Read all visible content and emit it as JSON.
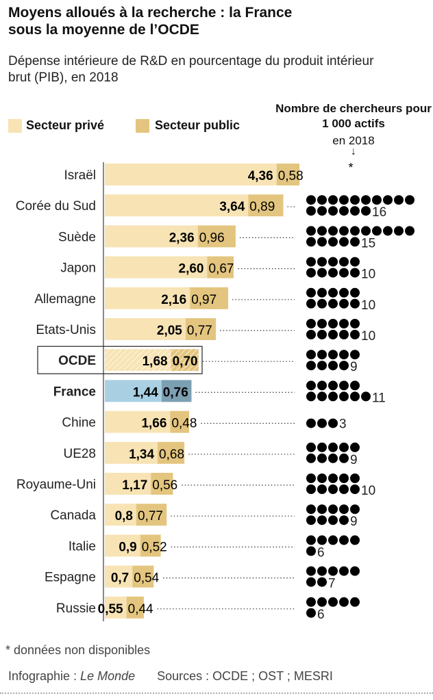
{
  "chart_data": {
    "type": "bar",
    "stacked": true,
    "title": "Moyens alloués à la recherche : la France sous la moyenne de l’OCDE",
    "subtitle": "Dépense intérieure de R&D en pourcentage du produit intérieur brut (PIB), en 2018",
    "legend": [
      {
        "name": "Secteur privé",
        "color": "#f7e3b4"
      },
      {
        "name": "Secteur public",
        "color": "#e3c57f"
      }
    ],
    "right_header": "Nombre de chercheurs pour 1 000 actifs",
    "right_sub": "en 2018",
    "right_arrow": "↓",
    "categories": [
      "Israël",
      "Corée du Sud",
      "Suède",
      "Japon",
      "Allemagne",
      "Etats-Unis",
      "OCDE",
      "France",
      "Chine",
      "UE28",
      "Royaume-Uni",
      "Canada",
      "Italie",
      "Espagne",
      "Russie"
    ],
    "series": [
      {
        "name": "Secteur privé",
        "values": [
          4.36,
          3.64,
          2.36,
          2.6,
          2.16,
          2.05,
          1.68,
          1.44,
          1.66,
          1.34,
          1.17,
          0.8,
          0.9,
          0.7,
          0.55
        ],
        "labels": [
          "4,36",
          "3,64",
          "2,36",
          "2,60",
          "2,16",
          "2,05",
          "1,68",
          "1,44",
          "1,66",
          "1,34",
          "1,17",
          "0,8",
          "0,9",
          "0,7",
          "0,55"
        ]
      },
      {
        "name": "Secteur public",
        "values": [
          0.58,
          0.89,
          0.96,
          0.67,
          0.97,
          0.77,
          0.7,
          0.76,
          0.48,
          0.68,
          0.56,
          0.77,
          0.52,
          0.54,
          0.44
        ],
        "labels": [
          "0,58",
          "0,89",
          "0,96",
          "0,67",
          "0,97",
          "0,77",
          "0,70",
          "0,76",
          "0,48",
          "0,68",
          "0,56",
          "0,77",
          "0,52",
          "0,54",
          "0,44"
        ]
      }
    ],
    "researchers": [
      null,
      16,
      15,
      10,
      10,
      10,
      9,
      11,
      3,
      9,
      10,
      9,
      6,
      7,
      6
    ],
    "researchers_missing": "*",
    "highlight": {
      "France": {
        "private": "#a9cfe3",
        "public": "#7c9fb2"
      },
      "OCDE": "hatched"
    }
  },
  "footer": {
    "note": "* données non disponibles",
    "credit": "Infographie : ",
    "credit_name": "Le Monde",
    "sources": "Sources : OCDE ; OST ; MESRI"
  }
}
